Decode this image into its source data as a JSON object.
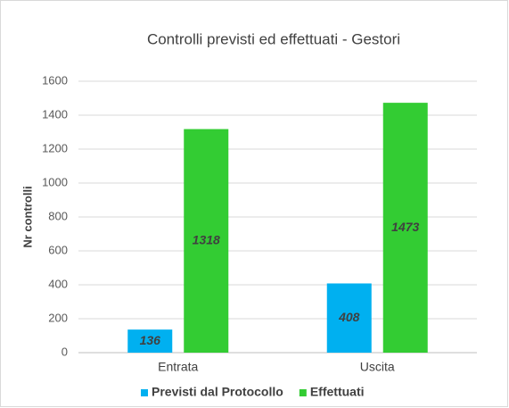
{
  "chart_data": {
    "type": "bar",
    "title": "Controlli previsti ed effettuati - Gestori",
    "y_label": "Nr controlli",
    "categories": [
      "Entrata",
      "Uscita"
    ],
    "series": [
      {
        "name": "Previsti dal Protocollo",
        "color": "#00b0f0",
        "values": [
          136,
          408
        ]
      },
      {
        "name": "Effettuati",
        "color": "#33cc33",
        "values": [
          1318,
          1473
        ]
      }
    ],
    "ylim": [
      0,
      1600
    ],
    "yticks": [
      0,
      200,
      400,
      600,
      800,
      1000,
      1200,
      1400,
      1600
    ],
    "grid": true,
    "legend": "bottom"
  }
}
